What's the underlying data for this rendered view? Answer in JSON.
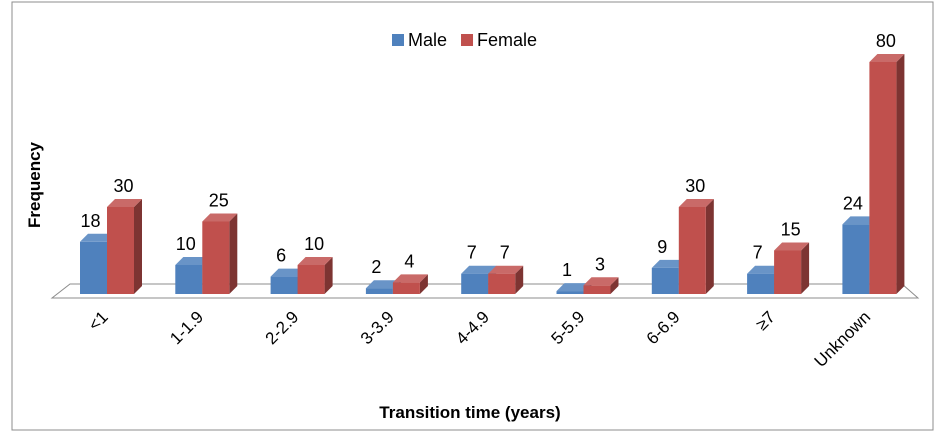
{
  "chart_data": {
    "type": "bar",
    "style": "3d-clustered-column",
    "title": "",
    "xlabel": "Transition time (years)",
    "ylabel": "Frequency",
    "ylim": [
      0,
      80
    ],
    "grid": false,
    "legend_position": "top-center",
    "categories": [
      "<1",
      "1-1.9",
      "2-2.9",
      "3-3.9",
      "4-4.9",
      "5-5.9",
      "6-6.9",
      "≥7",
      "Unknown"
    ],
    "series": [
      {
        "name": "Male",
        "color": "#4F81BD",
        "values": [
          18,
          10,
          6,
          2,
          7,
          1,
          9,
          7,
          24
        ]
      },
      {
        "name": "Female",
        "color": "#C0504D",
        "values": [
          30,
          25,
          10,
          4,
          7,
          3,
          30,
          15,
          80
        ]
      }
    ]
  }
}
